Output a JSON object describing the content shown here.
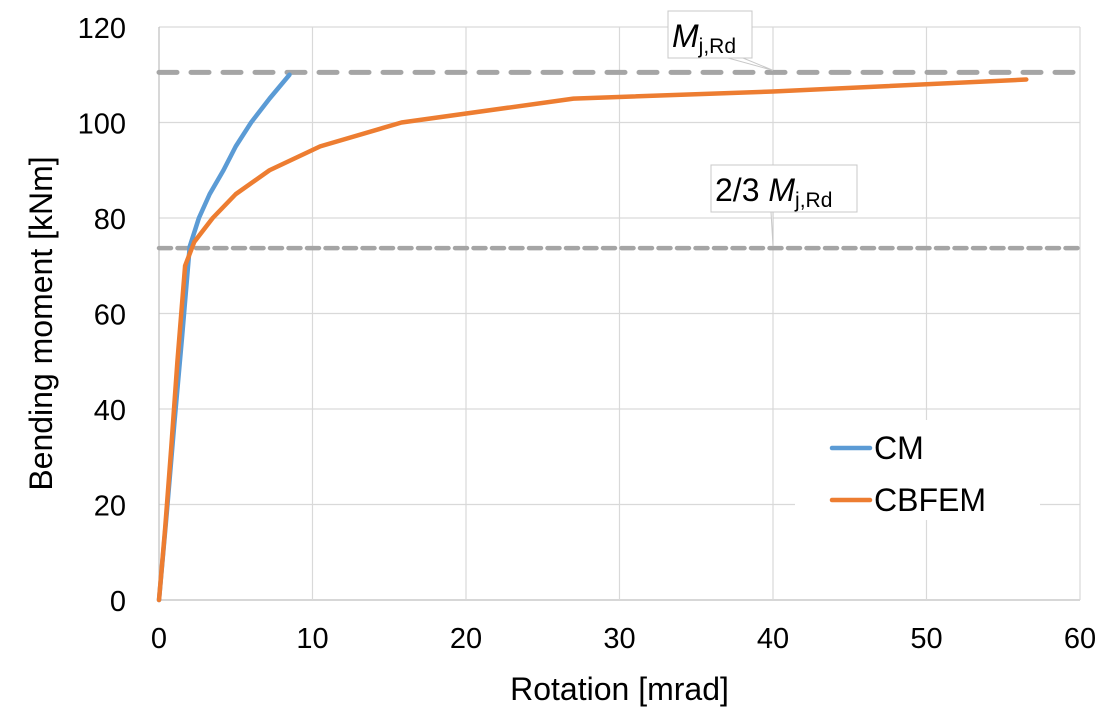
{
  "chart_data": {
    "type": "line",
    "title": "",
    "xlabel": "Rotation [mrad]",
    "ylabel": "Bending moment [kNm]",
    "xlim": [
      0,
      60
    ],
    "ylim": [
      0,
      120
    ],
    "xticks": [
      0,
      10,
      20,
      30,
      40,
      50,
      60
    ],
    "yticks": [
      0,
      20,
      40,
      60,
      80,
      100,
      120
    ],
    "grid": true,
    "legend": {
      "placement": "bottom-right",
      "entries": [
        "CM",
        "CBFEM"
      ]
    },
    "series": [
      {
        "name": "CM",
        "color": "#5B9BD5",
        "x": [
          0,
          0.5,
          1.0,
          1.5,
          2.0,
          2.6,
          3.3,
          4.2,
          5.0,
          6.0,
          7.2,
          8.5
        ],
        "y": [
          0,
          18,
          37,
          55,
          74,
          80,
          85,
          90,
          95,
          100,
          105,
          110
        ]
      },
      {
        "name": "CBFEM",
        "color": "#ED7D31",
        "x": [
          0,
          0.4,
          0.8,
          1.2,
          1.7,
          2.3,
          3.5,
          5.0,
          7.2,
          10.5,
          15.8,
          27.0,
          40.0,
          56.5
        ],
        "y": [
          0,
          15,
          32,
          50,
          70,
          75,
          80,
          85,
          90,
          95,
          100,
          105,
          106.5,
          109
        ]
      }
    ],
    "reference_lines": [
      {
        "name": "Mj,Rd",
        "y": 110.5,
        "color": "#A5A5A5",
        "label_main": "M",
        "label_sub": "j,Rd",
        "label_prefix": "",
        "anchor_x": 40
      },
      {
        "name": "2/3 Mj,Rd",
        "y": 73.7,
        "color": "#A5A5A5",
        "label_main": "M",
        "label_sub": "j,Rd",
        "label_prefix": "2/3 ",
        "anchor_x": 40
      }
    ],
    "colors": {
      "grid": "#D9D9D9",
      "axis": "#BFBFBF"
    }
  }
}
